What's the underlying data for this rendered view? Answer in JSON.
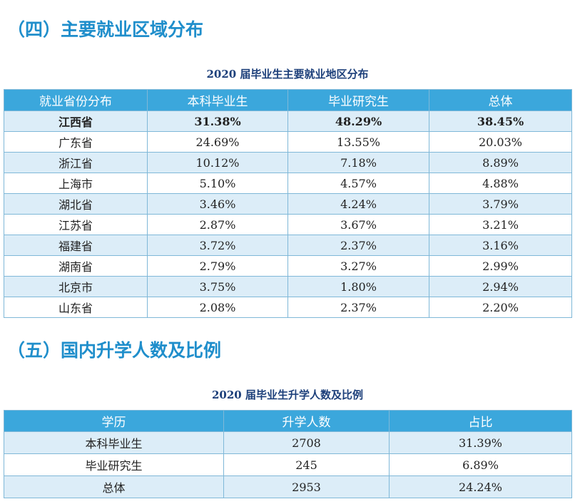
{
  "section1": {
    "heading": "（四）主要就业区域分布",
    "table": {
      "title": "2020 届毕业生主要就业地区分布",
      "header": [
        "就业省份分布",
        "本科毕业生",
        "毕业研究生",
        "总体"
      ],
      "rows": [
        [
          "江西省",
          "31.38%",
          "48.29%",
          "38.45%"
        ],
        [
          "广东省",
          "24.69%",
          "13.55%",
          "20.03%"
        ],
        [
          "浙江省",
          "10.12%",
          "7.18%",
          "8.89%"
        ],
        [
          "上海市",
          "5.10%",
          "4.57%",
          "4.88%"
        ],
        [
          "湖北省",
          "3.46%",
          "4.24%",
          "3.79%"
        ],
        [
          "江苏省",
          "2.87%",
          "3.67%",
          "3.21%"
        ],
        [
          "福建省",
          "3.72%",
          "2.37%",
          "3.16%"
        ],
        [
          "湖南省",
          "2.79%",
          "3.27%",
          "2.99%"
        ],
        [
          "北京市",
          "3.75%",
          "1.80%",
          "2.94%"
        ],
        [
          "山东省",
          "2.08%",
          "2.37%",
          "2.20%"
        ]
      ]
    }
  },
  "section2": {
    "heading": "（五）国内升学人数及比例",
    "table": {
      "title": "2020 届毕业生升学人数及比例",
      "header": [
        "学历",
        "升学人数",
        "占比"
      ],
      "rows": [
        [
          "本科毕业生",
          "2708",
          "31.39%"
        ],
        [
          "毕业研究生",
          "245",
          "6.89%"
        ],
        [
          "总体",
          "2953",
          "24.24%"
        ]
      ]
    }
  }
}
